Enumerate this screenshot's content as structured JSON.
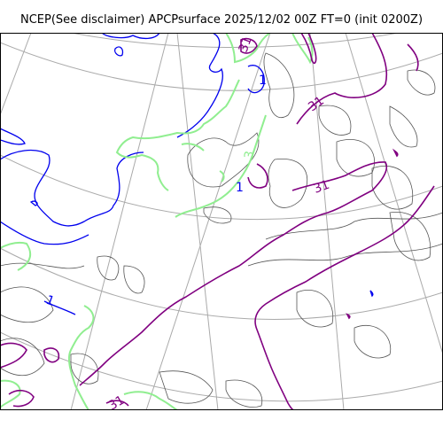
{
  "header": {
    "title": "NCEP(See disclaimer) APCPsurface 2025/12/02 00Z FT=0 (init 0200Z)"
  },
  "map": {
    "colors": {
      "coastline": "#555555",
      "graticule": "#aaaaaa",
      "contour_1": "#0000ee",
      "contour_3": "#90ee90",
      "contour_31": "#800080",
      "frame": "#000000"
    },
    "contour_labels": [
      {
        "id": "label-1-north",
        "text": "1"
      },
      {
        "id": "label-1-center",
        "text": "1"
      },
      {
        "id": "label-1-west",
        "text": "1"
      },
      {
        "id": "label-31-north",
        "text": "31"
      },
      {
        "id": "label-31-center",
        "text": "31"
      },
      {
        "id": "label-31-east",
        "text": "31"
      },
      {
        "id": "label-3-center",
        "text": "3"
      },
      {
        "id": "label-31-south",
        "text": "31"
      }
    ]
  }
}
